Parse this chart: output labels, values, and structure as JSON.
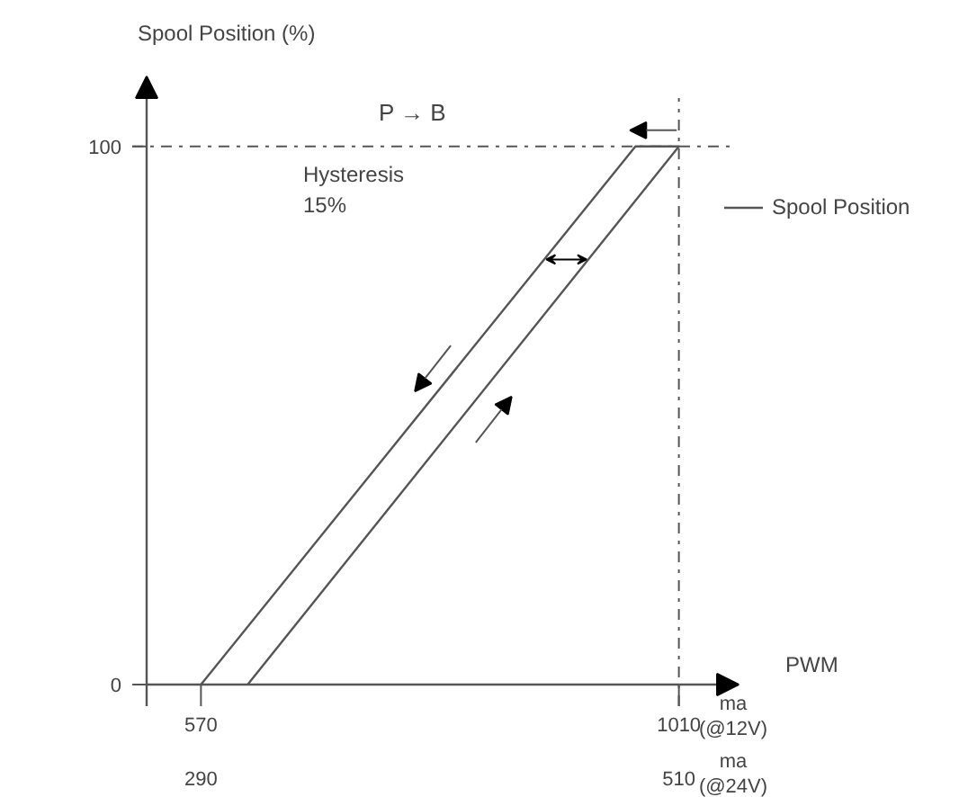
{
  "chart_data": {
    "type": "line",
    "xlabel": "PWM",
    "ylabel": "Spool Position (%)",
    "x2label": "ma (@24V)",
    "annotations": [
      "P → B",
      "Hysteresis\n15%",
      "ma\n(@12V)"
    ],
    "xlim": [
      520,
      1060
    ],
    "xticks": [
      570,
      1010
    ],
    "x2lim": [
      265,
      535
    ],
    "x2ticks": [
      290,
      510
    ],
    "ylim": [
      0,
      112
    ],
    "yticks": [
      0,
      100
    ],
    "series": [
      {
        "name": "Spool Position",
        "color": "#555555",
        "x": [
          613,
          1010,
          970,
          570
        ],
        "values": [
          0,
          100,
          100,
          0
        ]
      }
    ],
    "ref_lines": [
      {
        "axis": "y",
        "value": 100,
        "line_style": "dashdot",
        "color": "#555555"
      },
      {
        "axis": "x",
        "value": 1010,
        "line_style": "dashdot",
        "color": "#555555"
      }
    ],
    "grid": false,
    "legend": "right",
    "marker": "none",
    "line_style": "solid"
  }
}
